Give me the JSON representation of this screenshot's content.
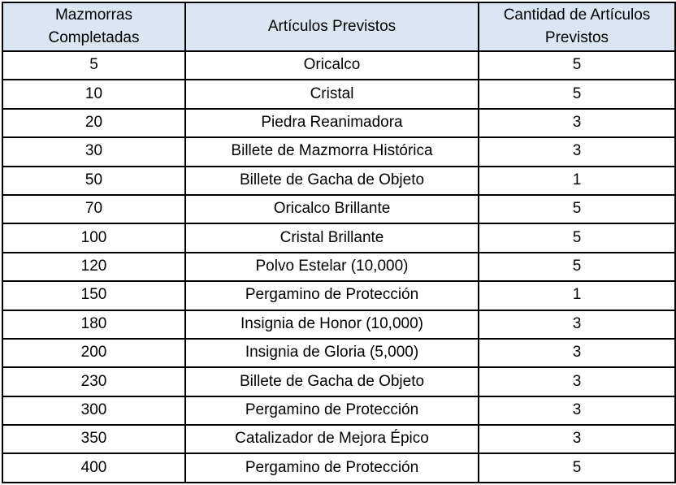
{
  "colors": {
    "header_bg": "#dce6f2",
    "border": "#000000",
    "text": "#000000",
    "row_bg": "#ffffff"
  },
  "table": {
    "columns": [
      {
        "label": "Mazmorras Completadas"
      },
      {
        "label": "Artículos Previstos"
      },
      {
        "label": "Cantidad de Artículos Previstos"
      }
    ],
    "rows": [
      {
        "dungeons": "5",
        "item": "Oricalco",
        "quantity": "5"
      },
      {
        "dungeons": "10",
        "item": "Cristal",
        "quantity": "5"
      },
      {
        "dungeons": "20",
        "item": "Piedra Reanimadora",
        "quantity": "3"
      },
      {
        "dungeons": "30",
        "item": "Billete de Mazmorra Histórica",
        "quantity": "3"
      },
      {
        "dungeons": "50",
        "item": "Billete de Gacha de Objeto",
        "quantity": "1"
      },
      {
        "dungeons": "70",
        "item": "Oricalco Brillante",
        "quantity": "5"
      },
      {
        "dungeons": "100",
        "item": "Cristal Brillante",
        "quantity": "5"
      },
      {
        "dungeons": "120",
        "item": "Polvo Estelar (10,000)",
        "quantity": "5"
      },
      {
        "dungeons": "150",
        "item": "Pergamino de Protección",
        "quantity": "1"
      },
      {
        "dungeons": "180",
        "item": "Insignia de Honor (10,000)",
        "quantity": "3"
      },
      {
        "dungeons": "200",
        "item": "Insignia de Gloria (5,000)",
        "quantity": "3"
      },
      {
        "dungeons": "230",
        "item": "Billete de Gacha de Objeto",
        "quantity": "3"
      },
      {
        "dungeons": "300",
        "item": "Pergamino de Protección",
        "quantity": "3"
      },
      {
        "dungeons": "350",
        "item": "Catalizador de Mejora Épico",
        "quantity": "3"
      },
      {
        "dungeons": "400",
        "item": "Pergamino de Protección",
        "quantity": "5"
      }
    ]
  }
}
